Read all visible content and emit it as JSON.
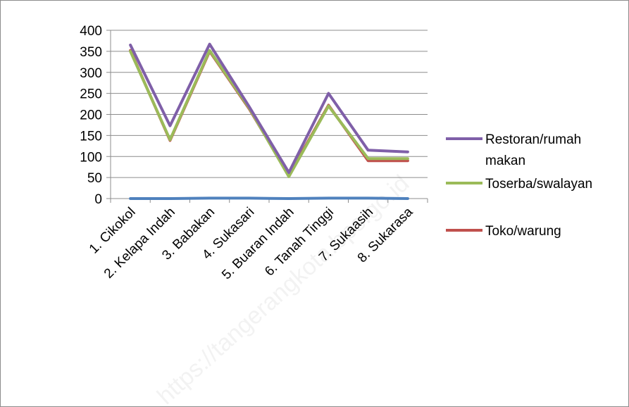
{
  "chart_data": {
    "type": "line",
    "categories": [
      "1. Cikokol",
      "2. Kelapa Indah",
      "3. Babakan",
      "4. Sukasari",
      "5. Buaran Indah",
      "6. Tanah Tinggi",
      "7. Sukaasih",
      "8. Sukarasa"
    ],
    "series": [
      {
        "name": "Restoran/rumah makan",
        "color": "#7f5fa8",
        "values": [
          365,
          173,
          367,
          218,
          62,
          250,
          115,
          111
        ]
      },
      {
        "name": "Toserba/swalayan",
        "color": "#9bbb59",
        "values": [
          350,
          140,
          352,
          215,
          52,
          220,
          95,
          95
        ]
      },
      {
        "name": "Toko/warung",
        "color": "#c0504d",
        "values": [
          352,
          138,
          350,
          213,
          55,
          222,
          90,
          90
        ]
      },
      {
        "name": "",
        "color": "#4f81bd",
        "values": [
          0,
          0,
          1,
          1,
          0,
          1,
          1,
          0
        ]
      }
    ],
    "legend": [
      "Restoran/rumah makan",
      "Toserba/swalayan",
      "Toko/warung"
    ],
    "legend_lines": [
      [
        "Restoran/rumah",
        "makan"
      ],
      [
        "Toserba/swalayan"
      ],
      [
        "Toko/warung"
      ]
    ],
    "y_ticks": [
      "0",
      "50",
      "100",
      "150",
      "200",
      "250",
      "300",
      "350",
      "400"
    ],
    "ylim": [
      0,
      400
    ],
    "grid": true,
    "legend_position": "right",
    "title": "",
    "xlabel": "",
    "ylabel": "",
    "watermark": "https://tangerangkota.bps.go.id"
  }
}
